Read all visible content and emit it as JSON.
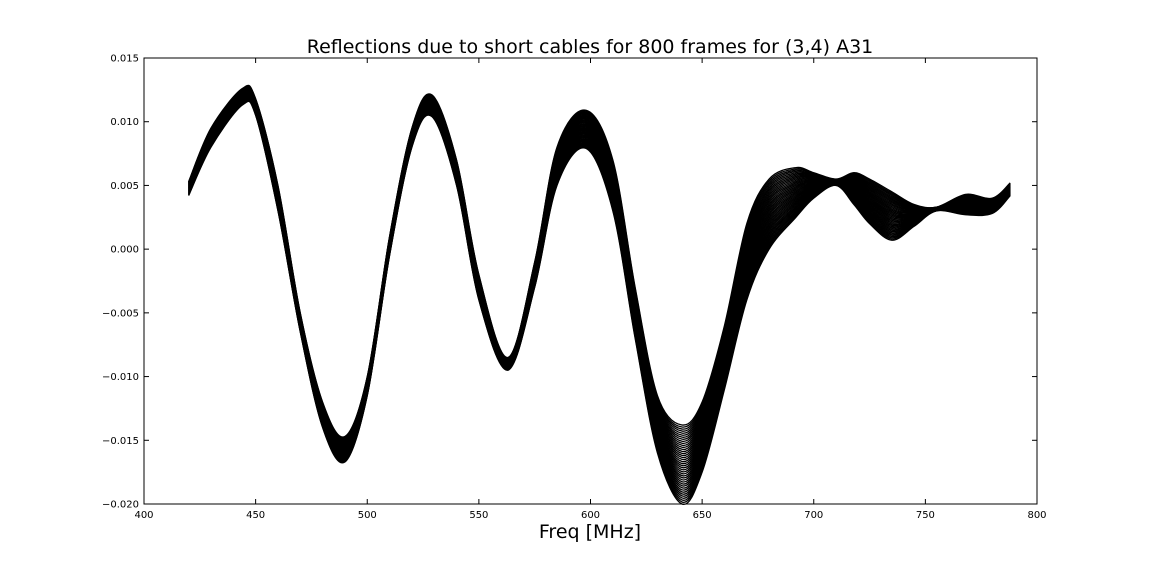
{
  "chart_data": {
    "type": "line",
    "title": "Reflections due to short cables for 800 frames for (3,4) A31",
    "xlabel": "Freq [MHz]",
    "ylabel": "",
    "xlim": [
      400,
      800
    ],
    "ylim": [
      -0.02,
      0.015
    ],
    "x_ticks": [
      "400",
      "450",
      "500",
      "550",
      "600",
      "650",
      "700",
      "750",
      "800"
    ],
    "y_ticks": [
      "0.015",
      "0.010",
      "0.005",
      "0.000",
      "−0.005",
      "−0.010",
      "−0.015",
      "−0.020"
    ],
    "grid": false,
    "line_color": "#000000",
    "frames": 800,
    "envelope": {
      "x": [
        420,
        430,
        444,
        450,
        460,
        470,
        480,
        490,
        500,
        510,
        520,
        529,
        540,
        550,
        563,
        575,
        585,
        598,
        610,
        620,
        630,
        641,
        650,
        660,
        670,
        680,
        692,
        700,
        710,
        718,
        725,
        735,
        745,
        755,
        768,
        780,
        788
      ],
      "upper": [
        0.0053,
        0.0095,
        0.0126,
        0.0118,
        0.005,
        -0.005,
        -0.012,
        -0.0147,
        -0.01,
        0.001,
        0.0095,
        0.0121,
        0.007,
        -0.002,
        -0.0085,
        -0.001,
        0.008,
        0.0109,
        0.007,
        -0.003,
        -0.0115,
        -0.0138,
        -0.012,
        -0.006,
        0.002,
        0.0055,
        0.0064,
        0.006,
        0.0055,
        0.006,
        0.0055,
        0.0045,
        0.0035,
        0.0033,
        0.0043,
        0.004,
        0.0052
      ],
      "lower": [
        0.0042,
        0.008,
        0.0113,
        0.0105,
        0.003,
        -0.0065,
        -0.014,
        -0.0167,
        -0.0115,
        -0.0005,
        0.008,
        0.0104,
        0.005,
        -0.004,
        -0.0095,
        -0.003,
        0.005,
        0.0079,
        0.003,
        -0.007,
        -0.016,
        -0.02,
        -0.0175,
        -0.011,
        -0.004,
        0.0,
        0.0025,
        0.004,
        0.005,
        0.0035,
        0.002,
        0.0007,
        0.0018,
        0.003,
        0.0027,
        0.0028,
        0.0042
      ]
    }
  }
}
